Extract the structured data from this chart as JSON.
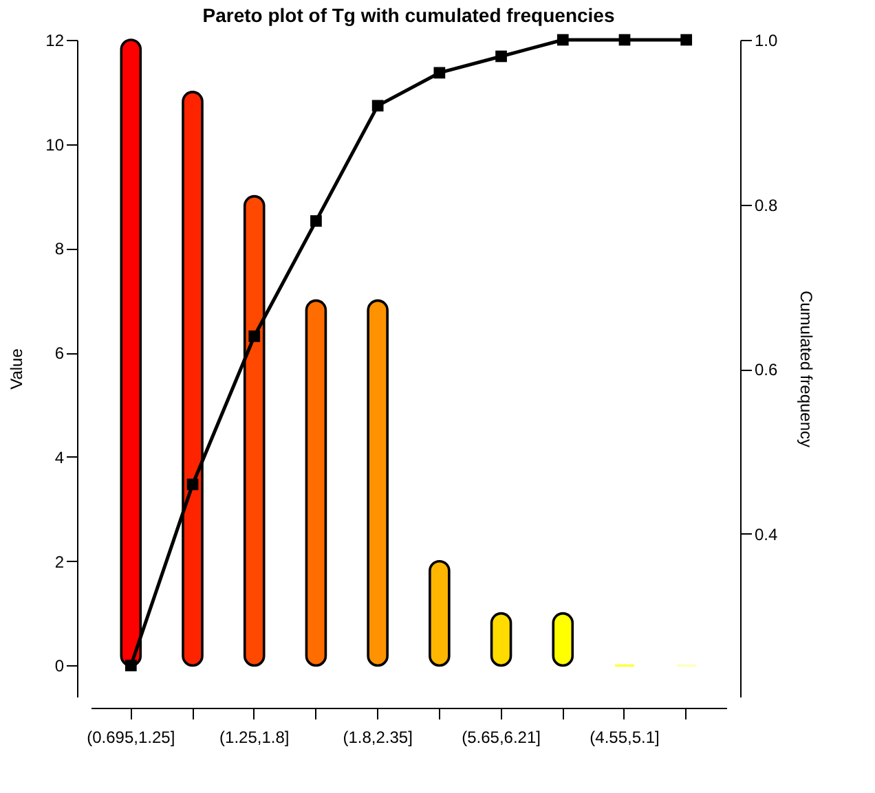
{
  "chart_data": {
    "type": "bar",
    "title": "Pareto plot of Tg with cumulated frequencies",
    "ylabel": "Value",
    "y2label": "Cumulated frequency",
    "categories": [
      "(0.695,1.25]",
      null,
      "(1.25,1.8]",
      null,
      "(1.8,2.35]",
      null,
      "(5.65,6.21]",
      null,
      "(4.55,5.1]",
      null
    ],
    "ylim": [
      -0.6,
      12
    ],
    "yticks": [
      0,
      2,
      4,
      6,
      8,
      10,
      12
    ],
    "y2lim": [
      0.202,
      1.0
    ],
    "y2ticks": [
      {
        "value": 0.4,
        "label": "0.4"
      },
      {
        "value": 0.6,
        "label": "0.6"
      },
      {
        "value": 0.8,
        "label": "0.8"
      },
      {
        "value": 1.0,
        "label": "1.0"
      }
    ],
    "series": [
      {
        "values": [
          12,
          11,
          9,
          7,
          7,
          2,
          1,
          1,
          0,
          0
        ],
        "colors": [
          "#ff0000",
          "#ff2400",
          "#ff4900",
          "#ff6d00",
          "#ff9200",
          "#ffb600",
          "#ffdb00",
          "#ffff00",
          "#ffff40",
          "#ffffbf"
        ]
      },
      {
        "type": "line",
        "axis": "y2",
        "color": "#000000",
        "marker": "square",
        "line_style": "solid",
        "values": [
          0.24,
          0.46,
          0.64,
          0.78,
          0.92,
          0.96,
          0.98,
          1.0,
          1.0,
          1.0
        ]
      }
    ]
  }
}
